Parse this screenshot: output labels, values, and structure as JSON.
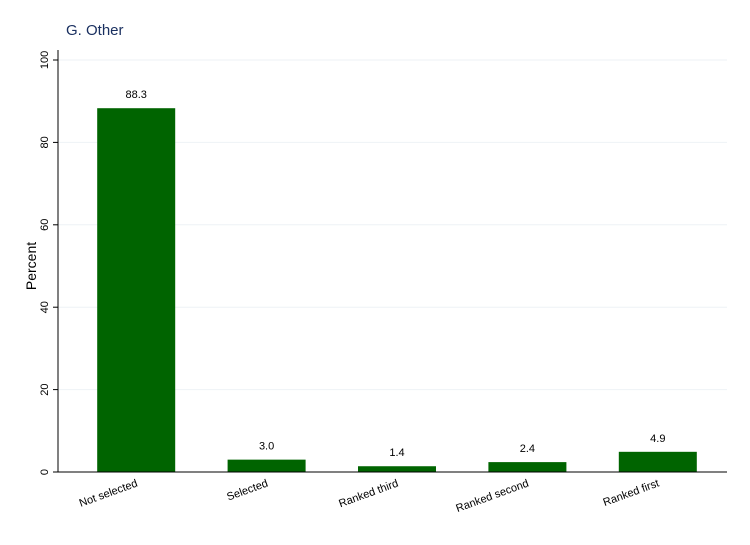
{
  "chart_data": {
    "type": "bar",
    "title": "G. Other",
    "y_label": "Percent",
    "categories": [
      "Not selected",
      "Selected",
      "Ranked third",
      "Ranked second",
      "Ranked first"
    ],
    "values": [
      88.3,
      3.0,
      1.4,
      2.4,
      4.9
    ],
    "value_labels": [
      "88.3",
      "3.0",
      "1.4",
      "2.4",
      "4.9"
    ],
    "color": "#006400",
    "ylim": [
      0,
      100
    ],
    "yticks": [
      0,
      20,
      40,
      60,
      80,
      100
    ],
    "grid": true
  }
}
